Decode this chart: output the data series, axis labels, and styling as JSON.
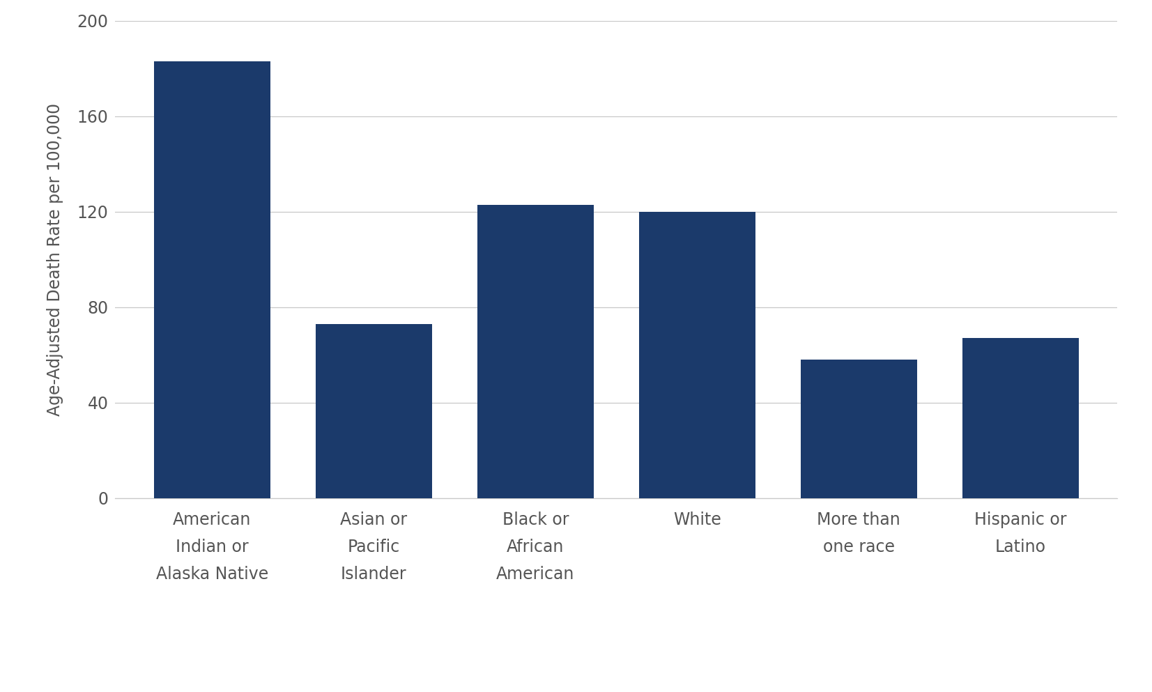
{
  "categories": [
    "American\nIndian or\nAlaska Native",
    "Asian or\nPacific\nIslander",
    "Black or\nAfrican\nAmerican",
    "White",
    "More than\none race",
    "Hispanic or\nLatino"
  ],
  "values": [
    183,
    73,
    123,
    120,
    58,
    67
  ],
  "bar_color": "#1b3a6b",
  "ylabel": "Age-Adjusted Death Rate per 100,000",
  "ylim": [
    0,
    200
  ],
  "yticks": [
    0,
    40,
    80,
    120,
    160,
    200
  ],
  "background_color": "#ffffff",
  "grid_color": "#c8c8c8",
  "tick_label_fontsize": 17,
  "ylabel_fontsize": 17,
  "bar_width": 0.72
}
